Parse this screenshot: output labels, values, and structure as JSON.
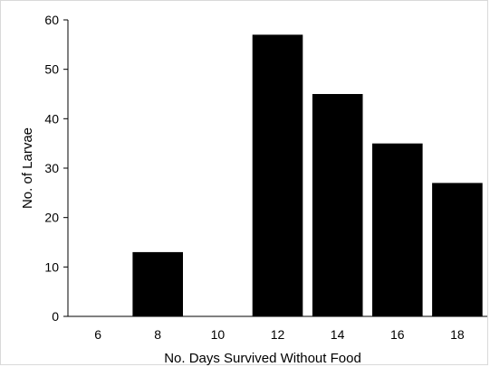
{
  "chart_data": {
    "type": "bar",
    "title": "",
    "xlabel": "No. Days Survived Without Food",
    "ylabel": "No. of Larvae",
    "categories": [
      "6",
      "8",
      "10",
      "12",
      "14",
      "16",
      "18"
    ],
    "values": [
      0,
      13,
      0,
      57,
      45,
      35,
      27
    ],
    "ylim": [
      0,
      60
    ],
    "yticks": [
      "0",
      "10",
      "20",
      "30",
      "40",
      "50",
      "60"
    ],
    "grid": false,
    "legend": "none",
    "bar_color": "#000000"
  }
}
